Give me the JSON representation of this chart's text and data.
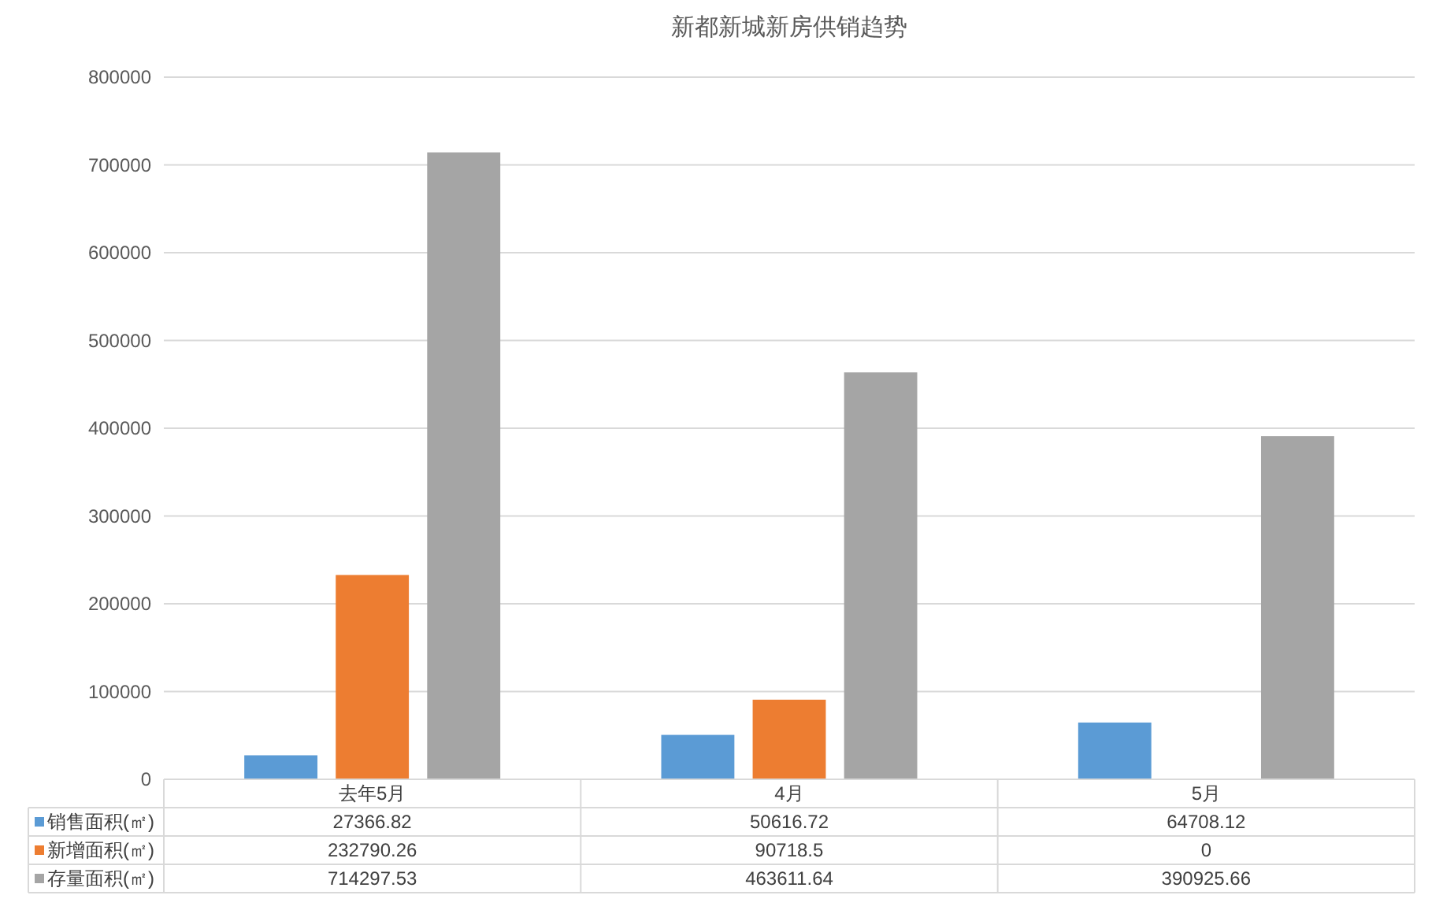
{
  "chart_data": {
    "type": "bar",
    "title": "新都新城新房供销趋势",
    "categories": [
      "去年5月",
      "4月",
      "5月"
    ],
    "series": [
      {
        "name": "销售面积(㎡)",
        "color": "#5b9bd5",
        "values": [
          27366.82,
          50616.72,
          64708.12
        ]
      },
      {
        "name": "新增面积(㎡)",
        "color": "#ed7d31",
        "values": [
          232790.26,
          90718.5,
          0
        ]
      },
      {
        "name": "存量面积(㎡)",
        "color": "#a5a5a5",
        "values": [
          714297.53,
          463611.64,
          390925.66
        ]
      }
    ],
    "ylim": [
      0,
      800000
    ],
    "yticks": [
      0,
      100000,
      200000,
      300000,
      400000,
      500000,
      600000,
      700000,
      800000
    ],
    "grid": true,
    "legend": "bottom",
    "data_labels": true
  }
}
